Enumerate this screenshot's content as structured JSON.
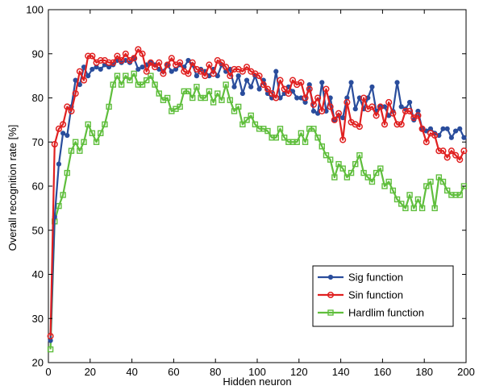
{
  "chart_data": {
    "type": "line",
    "title": "",
    "xlabel": "Hidden neuron",
    "ylabel": "Overall recognition rate [%]",
    "xlim": [
      0,
      200
    ],
    "ylim": [
      20,
      100
    ],
    "xticks": [
      0,
      20,
      40,
      60,
      80,
      100,
      120,
      140,
      160,
      180,
      200
    ],
    "yticks": [
      20,
      30,
      40,
      50,
      60,
      70,
      80,
      90,
      100
    ],
    "grid": false,
    "legend_position": "bottom-right",
    "x": [
      1,
      3,
      5,
      7,
      9,
      11,
      13,
      15,
      17,
      19,
      21,
      23,
      25,
      27,
      29,
      31,
      33,
      35,
      37,
      39,
      41,
      43,
      45,
      47,
      49,
      51,
      53,
      55,
      57,
      59,
      61,
      63,
      65,
      67,
      69,
      71,
      73,
      75,
      77,
      79,
      81,
      83,
      85,
      87,
      89,
      91,
      93,
      95,
      97,
      99,
      101,
      103,
      105,
      107,
      109,
      111,
      113,
      115,
      117,
      119,
      121,
      123,
      125,
      127,
      129,
      131,
      133,
      135,
      137,
      139,
      141,
      143,
      145,
      147,
      149,
      151,
      153,
      155,
      157,
      159,
      161,
      163,
      165,
      167,
      169,
      171,
      173,
      175,
      177,
      179,
      181,
      183,
      185,
      187,
      189,
      191,
      193,
      195,
      197,
      199
    ],
    "series": [
      {
        "name": "Sig function",
        "color": "#2a4d9c",
        "marker": "dot",
        "values": [
          25,
          53,
          65,
          72,
          71.5,
          78,
          84,
          83,
          87,
          85,
          86.5,
          87,
          86.5,
          87.5,
          87,
          87.5,
          88.5,
          88,
          88.5,
          88,
          89,
          86.5,
          87,
          87.5,
          88,
          87.5,
          86.5,
          86,
          87.5,
          86,
          86.5,
          87.5,
          87,
          88.5,
          87.5,
          85,
          86.5,
          86,
          85,
          86.5,
          85,
          87.5,
          86,
          86.5,
          82.5,
          85,
          81,
          84,
          82.5,
          85,
          82,
          84,
          81,
          80,
          86,
          80,
          81,
          82.5,
          81.5,
          80,
          80,
          79,
          83,
          77,
          76.5,
          83.5,
          77,
          80,
          75,
          76,
          75.5,
          80,
          83.5,
          77.5,
          80,
          77.5,
          80,
          82.5,
          77,
          78,
          78,
          76,
          77,
          83.5,
          78,
          77.5,
          79,
          75,
          77,
          73,
          72.5,
          73,
          72,
          71.5,
          73,
          73,
          71,
          72.5,
          73,
          71
        ]
      },
      {
        "name": "Sin function",
        "color": "#e02020",
        "marker": "circle",
        "values": [
          26,
          69.5,
          73,
          74,
          78,
          77,
          81,
          86,
          84,
          89.5,
          89.5,
          88,
          88.5,
          88.5,
          88,
          88,
          89.5,
          88.5,
          90,
          88.5,
          89,
          91,
          90,
          86,
          88,
          87,
          88,
          85.5,
          87.5,
          89,
          87.5,
          88,
          86,
          85.5,
          88,
          86.5,
          86,
          85,
          87.5,
          85.5,
          88.5,
          88,
          87,
          85,
          86.5,
          86.5,
          86,
          87,
          86,
          85.5,
          85,
          83,
          82,
          81,
          80,
          84,
          82,
          81,
          84,
          83,
          83.5,
          80,
          82,
          78.5,
          80,
          77,
          82,
          78,
          75,
          76.5,
          70.5,
          79,
          74.5,
          74,
          73.5,
          80,
          77.5,
          78,
          76,
          78,
          74,
          79,
          76.5,
          74,
          74,
          77,
          77,
          75.5,
          76,
          73,
          70,
          72,
          71.5,
          68,
          68,
          66.5,
          68,
          67,
          66,
          68
        ]
      },
      {
        "name": "Hardlim function",
        "color": "#5fbe3c",
        "marker": "square",
        "values": [
          23,
          52,
          55.5,
          58,
          63,
          68,
          70,
          68,
          70,
          74,
          72,
          70,
          72,
          74,
          78,
          83,
          85,
          83,
          85,
          84,
          85.5,
          83,
          83,
          84,
          85,
          83,
          81,
          79.5,
          80,
          77,
          77.5,
          78,
          81.5,
          81.5,
          80,
          82.5,
          80,
          80,
          81.5,
          79,
          81,
          79.5,
          83,
          79.5,
          77,
          78,
          74,
          75,
          76,
          74,
          73,
          73,
          72.5,
          71,
          71,
          73,
          71,
          70,
          70,
          70,
          72,
          70,
          73,
          73,
          71,
          69,
          67,
          66,
          62,
          65,
          64,
          62,
          63,
          65,
          67,
          63,
          62,
          61,
          63,
          64,
          60,
          61,
          59,
          57,
          56,
          55,
          58,
          55,
          57,
          55,
          60,
          61,
          55,
          62,
          61,
          59,
          58,
          58,
          58,
          60
        ]
      }
    ]
  }
}
